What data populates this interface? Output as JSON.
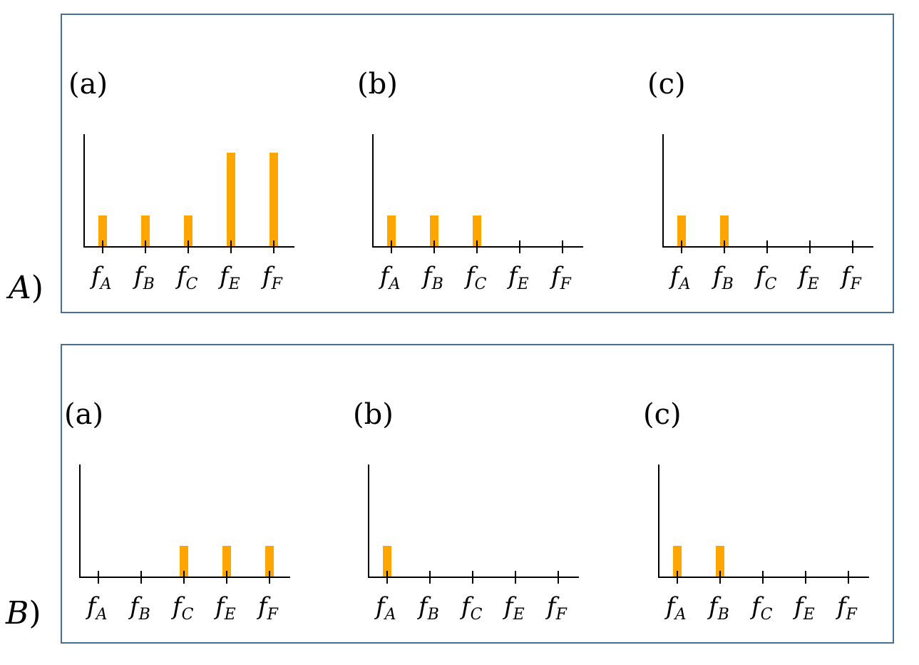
{
  "options": [
    {
      "letter": "A",
      "paren": ")",
      "panels": [
        {
          "label": "(a)",
          "values": [
            1,
            1,
            1,
            3,
            3
          ]
        },
        {
          "label": "(b)",
          "values": [
            1,
            1,
            1,
            0,
            0
          ]
        },
        {
          "label": "(c)",
          "values": [
            1,
            1,
            0,
            0,
            0
          ]
        }
      ]
    },
    {
      "letter": "B",
      "paren": ")",
      "panels": [
        {
          "label": "(a)",
          "values": [
            0,
            0,
            1,
            1,
            1
          ]
        },
        {
          "label": "(b)",
          "values": [
            1,
            0,
            0,
            0,
            0
          ]
        },
        {
          "label": "(c)",
          "values": [
            1,
            1,
            0,
            0,
            0
          ]
        }
      ]
    }
  ],
  "chart_data": {
    "type": "bar",
    "categories": [
      "A",
      "B",
      "C",
      "E",
      "F"
    ],
    "category_symbol": "f",
    "ylim": [
      0,
      3
    ],
    "grid": false,
    "bar_color": "#ffa500",
    "axis_color": "#000000",
    "border_color": "#4a7090"
  }
}
